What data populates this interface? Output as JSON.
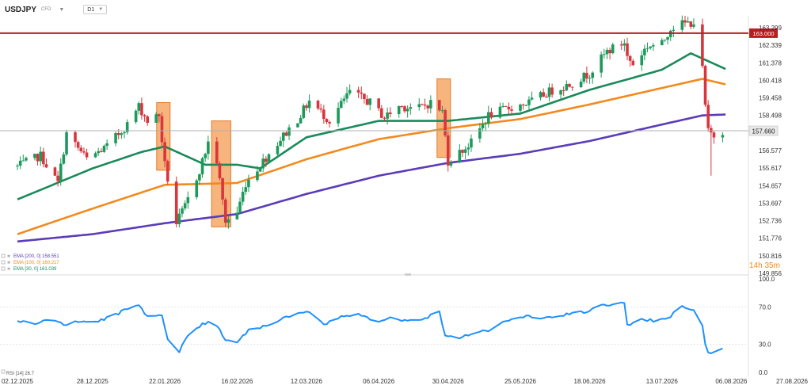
{
  "header": {
    "symbol": "USDJPY",
    "type": "CFD",
    "timeframe": "D1"
  },
  "colors": {
    "up": "#1d9a5b",
    "down": "#d8353c",
    "ema200": "#5b3cb8",
    "ema100": "#f28a1e",
    "ema30": "#1a8a5a",
    "level": "#b51f1f",
    "rsi": "#1e90ff",
    "highlight": "#f5a35c"
  },
  "horizontal_level": {
    "label": "163.000",
    "value": 163.0
  },
  "current_price": {
    "label": "157.660",
    "value": 157.66
  },
  "countdown": "14h 35m",
  "chart_data": [
    {
      "type": "candlestick",
      "ylim": [
        149.856,
        164.26
      ],
      "y_ticks": [
        "163.299",
        "162.339",
        "161.378",
        "160.418",
        "159.458",
        "158.498",
        "156.577",
        "155.617",
        "154.657",
        "153.697",
        "152.736",
        "151.776",
        "150.816",
        "149.856"
      ],
      "x_ticks": [
        "02.12.2025",
        "28.12.2025",
        "22.01.2026",
        "16.02.2026",
        "12.03.2026",
        "06.04.2026",
        "30.04.2026",
        "25.05.2026",
        "18.06.2026",
        "13.07.2026",
        "06.08.2026",
        "27.08.2026"
      ],
      "legend": [
        {
          "icon": "gear-icon",
          "text": "EMA [200, 0] 158.551",
          "color": "#5b3cb8"
        },
        {
          "icon": "gear-icon",
          "text": "EMA [100, 0] 160.217",
          "color": "#f28a1e"
        },
        {
          "icon": "gear-icon",
          "text": "EMA [30, 0] 161.039",
          "color": "#1a8a5a"
        }
      ],
      "anchors": [
        {
          "date": "2025-12-02",
          "price": 155.7
        },
        {
          "date": "2025-12-10",
          "price": 156.3
        },
        {
          "date": "2025-12-16",
          "price": 154.8
        },
        {
          "date": "2025-12-19",
          "price": 157.5
        },
        {
          "date": "2025-12-26",
          "price": 156.1
        },
        {
          "date": "2026-01-02",
          "price": 156.8
        },
        {
          "date": "2026-01-09",
          "price": 158.0
        },
        {
          "date": "2026-01-13",
          "price": 159.0
        },
        {
          "date": "2026-01-16",
          "price": 158.2
        },
        {
          "date": "2026-01-20",
          "price": 158.5
        },
        {
          "date": "2026-01-22",
          "price": 155.8
        },
        {
          "date": "2026-01-26",
          "price": 152.6
        },
        {
          "date": "2026-01-29",
          "price": 153.5
        },
        {
          "date": "2026-02-03",
          "price": 155.5
        },
        {
          "date": "2026-02-06",
          "price": 157.0
        },
        {
          "date": "2026-02-09",
          "price": 156.0
        },
        {
          "date": "2026-02-12",
          "price": 152.7
        },
        {
          "date": "2026-02-16",
          "price": 153.2
        },
        {
          "date": "2026-02-19",
          "price": 154.8
        },
        {
          "date": "2026-02-24",
          "price": 155.8
        },
        {
          "date": "2026-03-03",
          "price": 157.2
        },
        {
          "date": "2026-03-09",
          "price": 158.3
        },
        {
          "date": "2026-03-13",
          "price": 159.3
        },
        {
          "date": "2026-03-20",
          "price": 158.2
        },
        {
          "date": "2026-03-27",
          "price": 159.8
        },
        {
          "date": "2026-04-03",
          "price": 159.2
        },
        {
          "date": "2026-04-08",
          "price": 158.4
        },
        {
          "date": "2026-04-13",
          "price": 159.0
        },
        {
          "date": "2026-04-20",
          "price": 158.9
        },
        {
          "date": "2026-04-24",
          "price": 159.2
        },
        {
          "date": "2026-04-28",
          "price": 158.7
        },
        {
          "date": "2026-04-30",
          "price": 156.0
        },
        {
          "date": "2026-05-05",
          "price": 156.6
        },
        {
          "date": "2026-05-08",
          "price": 157.0
        },
        {
          "date": "2026-05-14",
          "price": 158.5
        },
        {
          "date": "2026-05-21",
          "price": 158.9
        },
        {
          "date": "2026-05-28",
          "price": 159.2
        },
        {
          "date": "2026-06-04",
          "price": 159.8
        },
        {
          "date": "2026-06-11",
          "price": 160.2
        },
        {
          "date": "2026-06-18",
          "price": 160.8
        },
        {
          "date": "2026-06-24",
          "price": 162.0
        },
        {
          "date": "2026-06-30",
          "price": 162.5
        },
        {
          "date": "2026-07-01",
          "price": 161.7
        },
        {
          "date": "2026-07-03",
          "price": 161.3
        },
        {
          "date": "2026-07-08",
          "price": 162.3
        },
        {
          "date": "2026-07-13",
          "price": 162.4
        },
        {
          "date": "2026-07-16",
          "price": 163.3
        },
        {
          "date": "2026-07-20",
          "price": 163.5
        },
        {
          "date": "2026-07-24",
          "price": 163.6
        },
        {
          "date": "2026-07-27",
          "price": 161.0
        },
        {
          "date": "2026-07-28",
          "price": 159.0
        },
        {
          "date": "2026-07-29",
          "price": 157.6
        },
        {
          "date": "2026-07-31",
          "price": 157.4
        },
        {
          "date": "2026-08-03",
          "price": 157.66
        }
      ],
      "ema200": [
        {
          "date": "2025-12-02",
          "value": 151.6
        },
        {
          "date": "2025-12-28",
          "value": 152.0
        },
        {
          "date": "2026-01-22",
          "value": 152.6
        },
        {
          "date": "2026-02-16",
          "value": 153.1
        },
        {
          "date": "2026-03-12",
          "value": 154.2
        },
        {
          "date": "2026-04-06",
          "value": 155.2
        },
        {
          "date": "2026-04-30",
          "value": 155.9
        },
        {
          "date": "2026-05-25",
          "value": 156.4
        },
        {
          "date": "2026-06-18",
          "value": 157.1
        },
        {
          "date": "2026-07-13",
          "value": 158.0
        },
        {
          "date": "2026-07-27",
          "value": 158.5
        },
        {
          "date": "2026-08-04",
          "value": 158.55
        }
      ],
      "ema100": [
        {
          "date": "2025-12-02",
          "value": 152.0
        },
        {
          "date": "2025-12-28",
          "value": 153.4
        },
        {
          "date": "2026-01-22",
          "value": 154.7
        },
        {
          "date": "2026-02-16",
          "value": 154.8
        },
        {
          "date": "2026-03-12",
          "value": 156.1
        },
        {
          "date": "2026-04-06",
          "value": 157.2
        },
        {
          "date": "2026-04-30",
          "value": 157.8
        },
        {
          "date": "2026-05-25",
          "value": 158.3
        },
        {
          "date": "2026-06-18",
          "value": 159.1
        },
        {
          "date": "2026-07-13",
          "value": 160.0
        },
        {
          "date": "2026-07-27",
          "value": 160.5
        },
        {
          "date": "2026-08-04",
          "value": 160.2
        }
      ],
      "ema30": [
        {
          "date": "2025-12-02",
          "value": 153.9
        },
        {
          "date": "2025-12-28",
          "value": 155.6
        },
        {
          "date": "2026-01-14",
          "value": 156.5
        },
        {
          "date": "2026-01-22",
          "value": 156.8
        },
        {
          "date": "2026-02-05",
          "value": 155.8
        },
        {
          "date": "2026-02-16",
          "value": 155.8
        },
        {
          "date": "2026-02-24",
          "value": 155.6
        },
        {
          "date": "2026-03-12",
          "value": 157.3
        },
        {
          "date": "2026-04-06",
          "value": 158.2
        },
        {
          "date": "2026-04-30",
          "value": 158.2
        },
        {
          "date": "2026-05-25",
          "value": 158.6
        },
        {
          "date": "2026-06-18",
          "value": 159.9
        },
        {
          "date": "2026-07-13",
          "value": 161.0
        },
        {
          "date": "2026-07-23",
          "value": 161.9
        },
        {
          "date": "2026-08-04",
          "value": 161.04
        }
      ],
      "highlights": [
        {
          "from": "2026-01-20",
          "to": "2026-01-23",
          "high": 159.2,
          "low": 155.5
        },
        {
          "from": "2026-02-08",
          "to": "2026-02-13",
          "high": 158.2,
          "low": 152.4
        },
        {
          "from": "2026-04-27",
          "to": "2026-04-30",
          "high": 160.5,
          "low": 156.2
        }
      ]
    },
    {
      "type": "line",
      "title": "RSI [14] 26.7",
      "ylim": [
        0,
        100
      ],
      "y_ticks": [
        "100.0",
        "70.0",
        "30.0",
        "0.0"
      ],
      "series": [
        {
          "name": "RSI [14]",
          "points": [
            {
              "date": "2025-12-02",
              "value": 55
            },
            {
              "date": "2025-12-08",
              "value": 52
            },
            {
              "date": "2025-12-14",
              "value": 58
            },
            {
              "date": "2025-12-18",
              "value": 50
            },
            {
              "date": "2025-12-22",
              "value": 55
            },
            {
              "date": "2025-12-28",
              "value": 53
            },
            {
              "date": "2026-01-04",
              "value": 60
            },
            {
              "date": "2026-01-09",
              "value": 68
            },
            {
              "date": "2026-01-13",
              "value": 72
            },
            {
              "date": "2026-01-16",
              "value": 60
            },
            {
              "date": "2026-01-21",
              "value": 62
            },
            {
              "date": "2026-01-23",
              "value": 35
            },
            {
              "date": "2026-01-27",
              "value": 22
            },
            {
              "date": "2026-01-30",
              "value": 40
            },
            {
              "date": "2026-02-04",
              "value": 52
            },
            {
              "date": "2026-02-08",
              "value": 55
            },
            {
              "date": "2026-02-12",
              "value": 35
            },
            {
              "date": "2026-02-16",
              "value": 33
            },
            {
              "date": "2026-02-20",
              "value": 45
            },
            {
              "date": "2026-02-26",
              "value": 50
            },
            {
              "date": "2026-03-04",
              "value": 58
            },
            {
              "date": "2026-03-10",
              "value": 63
            },
            {
              "date": "2026-03-14",
              "value": 65
            },
            {
              "date": "2026-03-18",
              "value": 50
            },
            {
              "date": "2026-03-24",
              "value": 60
            },
            {
              "date": "2026-03-30",
              "value": 63
            },
            {
              "date": "2026-04-05",
              "value": 55
            },
            {
              "date": "2026-04-10",
              "value": 58
            },
            {
              "date": "2026-04-16",
              "value": 55
            },
            {
              "date": "2026-04-22",
              "value": 58
            },
            {
              "date": "2026-04-27",
              "value": 65
            },
            {
              "date": "2026-04-29",
              "value": 40
            },
            {
              "date": "2026-05-03",
              "value": 36
            },
            {
              "date": "2026-05-08",
              "value": 42
            },
            {
              "date": "2026-05-14",
              "value": 45
            },
            {
              "date": "2026-05-20",
              "value": 55
            },
            {
              "date": "2026-05-27",
              "value": 60
            },
            {
              "date": "2026-06-03",
              "value": 58
            },
            {
              "date": "2026-06-10",
              "value": 62
            },
            {
              "date": "2026-06-17",
              "value": 65
            },
            {
              "date": "2026-06-23",
              "value": 72
            },
            {
              "date": "2026-06-30",
              "value": 74
            },
            {
              "date": "2026-07-01",
              "value": 50
            },
            {
              "date": "2026-07-05",
              "value": 58
            },
            {
              "date": "2026-07-10",
              "value": 55
            },
            {
              "date": "2026-07-16",
              "value": 60
            },
            {
              "date": "2026-07-20",
              "value": 72
            },
            {
              "date": "2026-07-24",
              "value": 66
            },
            {
              "date": "2026-07-26",
              "value": 68
            },
            {
              "date": "2026-07-28",
              "value": 30
            },
            {
              "date": "2026-07-29",
              "value": 22
            },
            {
              "date": "2026-07-31",
              "value": 21
            },
            {
              "date": "2026-08-03",
              "value": 26.7
            }
          ]
        }
      ]
    }
  ]
}
